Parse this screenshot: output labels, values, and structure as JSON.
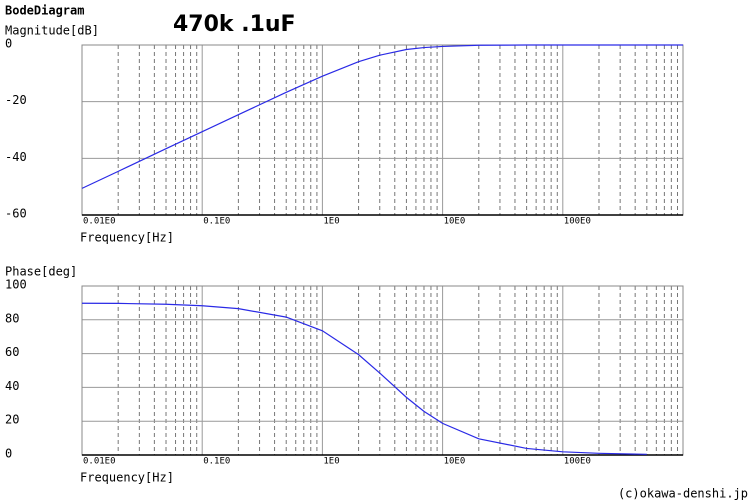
{
  "header": {
    "title": "BodeDiagram",
    "subtitle": "470k .1uF"
  },
  "chart_data": [
    {
      "type": "line",
      "y_label": "Magnitude[dB]",
      "x_label": "Frequency[Hz]",
      "xscale": "log",
      "color": "#2a2ae6",
      "grid": true,
      "minor_grid": true,
      "x": [
        0.01,
        0.02,
        0.05,
        0.1,
        0.2,
        0.5,
        1,
        2,
        3,
        5,
        7,
        10,
        20,
        50,
        100,
        200,
        500,
        1000
      ],
      "values": [
        -50.6,
        -44.6,
        -36.6,
        -30.6,
        -24.6,
        -16.7,
        -11.0,
        -5.9,
        -3.6,
        -1.6,
        -0.9,
        -0.5,
        -0.1,
        0,
        0,
        0,
        0,
        0
      ],
      "xlim": [
        0.01,
        1000
      ],
      "ylim": [
        -60,
        0
      ],
      "yticks": [
        0,
        -20,
        -40,
        -60
      ],
      "xticks": [
        {
          "value": 0.01,
          "label": "0.01E0"
        },
        {
          "value": 0.1,
          "label": "0.1E0"
        },
        {
          "value": 1,
          "label": "1E0"
        },
        {
          "value": 10,
          "label": "10E0"
        },
        {
          "value": 100,
          "label": "100E0"
        }
      ]
    },
    {
      "type": "line",
      "y_label": "Phase[deg]",
      "x_label": "Frequency[Hz]",
      "xscale": "log",
      "color": "#2a2ae6",
      "grid": true,
      "minor_grid": true,
      "x": [
        0.01,
        0.02,
        0.05,
        0.1,
        0.2,
        0.5,
        1,
        2,
        3,
        5,
        7,
        10,
        20,
        50,
        100,
        200,
        500
      ],
      "values": [
        89.8,
        89.7,
        89.2,
        88.3,
        86.6,
        81.6,
        73.5,
        59.4,
        48.5,
        34.1,
        25.8,
        18.7,
        9.6,
        3.9,
        1.9,
        1.0,
        0.4
      ],
      "xlim": [
        0.01,
        1000
      ],
      "ylim": [
        0,
        100
      ],
      "yticks": [
        100,
        80,
        60,
        40,
        20,
        0
      ],
      "xticks": [
        {
          "value": 0.01,
          "label": "0.01E0"
        },
        {
          "value": 0.1,
          "label": "0.1E0"
        },
        {
          "value": 1,
          "label": "1E0"
        },
        {
          "value": 10,
          "label": "10E0"
        },
        {
          "value": 100,
          "label": "100E0"
        }
      ]
    }
  ],
  "footer": "(c)okawa-denshi.jp"
}
